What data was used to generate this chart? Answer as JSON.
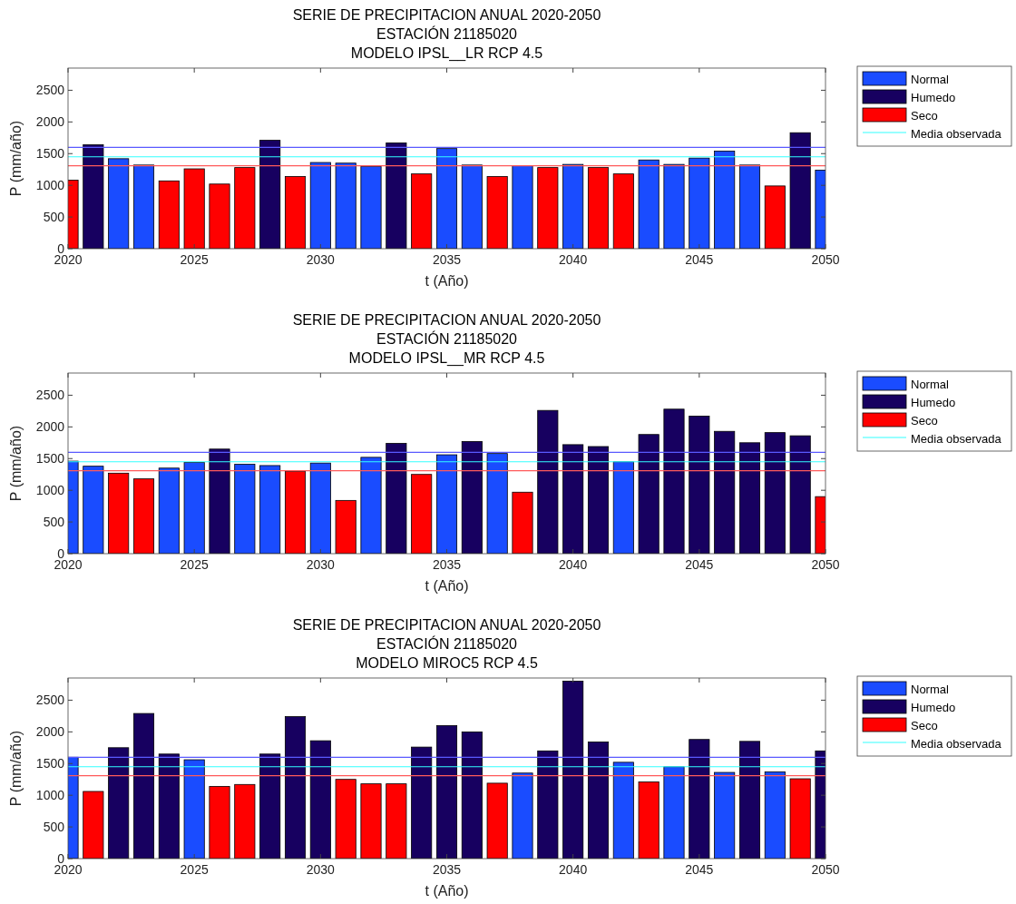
{
  "chart_data": [
    {
      "type": "bar",
      "title": "SERIE DE PRECIPITACION ANUAL 2020-2050\nESTACIÓN 21185020\nMODELO IPSL__LR RCP 4.5",
      "xlabel": "t (Año)",
      "ylabel": "P (mm/año)",
      "xlim": [
        2020,
        2050
      ],
      "xticks": [
        2020,
        2025,
        2030,
        2035,
        2040,
        2045,
        2050
      ],
      "ylim": [
        0,
        2850
      ],
      "yticks": [
        0,
        500,
        1000,
        1500,
        2000,
        2500
      ],
      "grid": false,
      "legend": "right",
      "series": [
        {
          "name": "Normal",
          "color": "#1a4cff",
          "x": [
            2022,
            2023,
            2030,
            2031,
            2032,
            2035,
            2036,
            2038,
            2040,
            2043,
            2044,
            2045,
            2046,
            2047,
            2050
          ],
          "values": [
            1420,
            1320,
            1360,
            1350,
            1300,
            1580,
            1320,
            1310,
            1330,
            1400,
            1330,
            1430,
            1540,
            1320,
            1240
          ]
        },
        {
          "name": "Humedo",
          "color": "#170060",
          "x": [
            2021,
            2028,
            2033,
            2049
          ],
          "values": [
            1640,
            1710,
            1670,
            1830
          ]
        },
        {
          "name": "Seco",
          "color": "#ff0000",
          "x": [
            2020,
            2024,
            2025,
            2026,
            2027,
            2029,
            2034,
            2037,
            2039,
            2041,
            2042,
            2048
          ],
          "values": [
            1080,
            1070,
            1260,
            1020,
            1280,
            1140,
            1180,
            1140,
            1280,
            1280,
            1180,
            990
          ]
        }
      ],
      "ref_lines": [
        {
          "axis": "y",
          "value": 1600,
          "label": null,
          "color": "#5a5aff"
        },
        {
          "axis": "y",
          "value": 1450,
          "label": "Media observada",
          "color": "#33ffff"
        },
        {
          "axis": "y",
          "value": 1310,
          "label": null,
          "color": "#ff5a5a"
        }
      ]
    },
    {
      "type": "bar",
      "title": "SERIE DE PRECIPITACION ANUAL 2020-2050\nESTACIÓN 21185020\nMODELO IPSL__MR RCP 4.5",
      "xlabel": "t (Año)",
      "ylabel": "P (mm/año)",
      "xlim": [
        2020,
        2050
      ],
      "xticks": [
        2020,
        2025,
        2030,
        2035,
        2040,
        2045,
        2050
      ],
      "ylim": [
        0,
        2850
      ],
      "yticks": [
        0,
        500,
        1000,
        1500,
        2000,
        2500
      ],
      "grid": false,
      "legend": "right",
      "series": [
        {
          "name": "Normal",
          "color": "#1a4cff",
          "x": [
            2020,
            2021,
            2024,
            2025,
            2027,
            2028,
            2030,
            2032,
            2035,
            2037,
            2042
          ],
          "values": [
            1460,
            1380,
            1350,
            1440,
            1410,
            1390,
            1430,
            1520,
            1560,
            1580,
            1450
          ]
        },
        {
          "name": "Humedo",
          "color": "#170060",
          "x": [
            2026,
            2033,
            2036,
            2039,
            2040,
            2041,
            2043,
            2044,
            2045,
            2046,
            2047,
            2048,
            2049
          ],
          "values": [
            1650,
            1740,
            1770,
            2260,
            1720,
            1690,
            1880,
            2280,
            2170,
            1930,
            1750,
            1910,
            1860
          ]
        },
        {
          "name": "Seco",
          "color": "#ff0000",
          "x": [
            2022,
            2023,
            2029,
            2031,
            2034,
            2038,
            2050
          ],
          "values": [
            1270,
            1180,
            1300,
            840,
            1250,
            970,
            900
          ]
        }
      ],
      "ref_lines": [
        {
          "axis": "y",
          "value": 1600,
          "label": null,
          "color": "#5a5aff"
        },
        {
          "axis": "y",
          "value": 1450,
          "label": "Media observada",
          "color": "#33ffff"
        },
        {
          "axis": "y",
          "value": 1310,
          "label": null,
          "color": "#ff5a5a"
        }
      ]
    },
    {
      "type": "bar",
      "title": "SERIE DE PRECIPITACION ANUAL 2020-2050\nESTACIÓN 21185020\nMODELO MIROC5 RCP 4.5",
      "xlabel": "t (Año)",
      "ylabel": "P (mm/año)",
      "xlim": [
        2020,
        2050
      ],
      "xticks": [
        2020,
        2025,
        2030,
        2035,
        2040,
        2045,
        2050
      ],
      "ylim": [
        0,
        2850
      ],
      "yticks": [
        0,
        500,
        1000,
        1500,
        2000,
        2500
      ],
      "grid": false,
      "legend": "right",
      "series": [
        {
          "name": "Normal",
          "color": "#1a4cff",
          "x": [
            2020,
            2025,
            2038,
            2042,
            2044,
            2046,
            2048
          ],
          "values": [
            1600,
            1560,
            1350,
            1520,
            1450,
            1360,
            1370
          ]
        },
        {
          "name": "Humedo",
          "color": "#170060",
          "x": [
            2022,
            2023,
            2024,
            2028,
            2029,
            2030,
            2034,
            2035,
            2036,
            2039,
            2040,
            2041,
            2045,
            2047,
            2050
          ],
          "values": [
            1750,
            2290,
            1650,
            1650,
            2240,
            1860,
            1760,
            2100,
            2000,
            1700,
            2800,
            1840,
            1880,
            1850,
            1700
          ]
        },
        {
          "name": "Seco",
          "color": "#ff0000",
          "x": [
            2021,
            2026,
            2027,
            2031,
            2032,
            2033,
            2037,
            2043,
            2049
          ],
          "values": [
            1060,
            1140,
            1170,
            1250,
            1180,
            1180,
            1190,
            1210,
            1260
          ]
        }
      ],
      "ref_lines": [
        {
          "axis": "y",
          "value": 1600,
          "label": null,
          "color": "#5a5aff"
        },
        {
          "axis": "y",
          "value": 1450,
          "label": "Media observada",
          "color": "#33ffff"
        },
        {
          "axis": "y",
          "value": 1310,
          "label": null,
          "color": "#ff5a5a"
        }
      ]
    }
  ]
}
